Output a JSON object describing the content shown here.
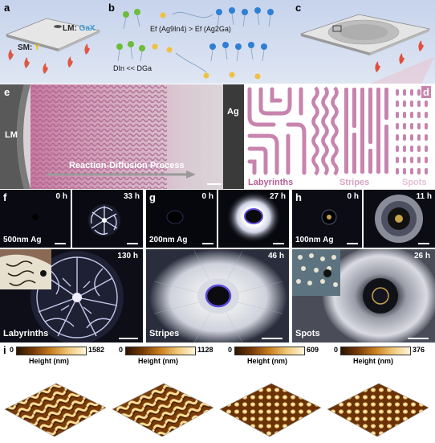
{
  "panels": {
    "a": {
      "label": "a",
      "lm_prefix": "LM: ",
      "lm_value": "GaX",
      "sm_prefix": "SM: ",
      "sm_value": "Y"
    },
    "b": {
      "label": "b",
      "eq1_left": "Ef (Ag9In4)",
      "eq1_op": ">",
      "eq1_right": "Ef (Ag2Ga)",
      "eq2": "DIn << DGa"
    },
    "c": {
      "label": "c"
    },
    "d": {
      "label": "d",
      "cat1": "Labyrinths",
      "cat2": "Stripes",
      "cat3": "Spots"
    },
    "e": {
      "label": "e",
      "left_text": "LM",
      "right_text": "Ag",
      "process_text": "Reaction-Diffusion Process"
    },
    "f": {
      "label": "f",
      "t0": "0 h",
      "t1": "33 h",
      "t2": "130 h",
      "film": "500nm Ag",
      "pattern": "Labyrinths"
    },
    "g": {
      "label": "g",
      "t0": "0 h",
      "t1": "27 h",
      "t2": "46 h",
      "film": "200nm Ag",
      "pattern": "Stripes"
    },
    "h": {
      "label": "h",
      "t0": "0 h",
      "t1": "11 h",
      "t2": "26 h",
      "film": "100nm Ag",
      "pattern": "Spots"
    },
    "i": {
      "label": "i"
    }
  },
  "colorbars": [
    {
      "min": "0",
      "max": "1582",
      "unit_label": "Height (nm)"
    },
    {
      "min": "0",
      "max": "1128",
      "unit_label": "Height (nm)"
    },
    {
      "min": "0",
      "max": "609",
      "unit_label": "Height (nm)"
    },
    {
      "min": "0",
      "max": "376",
      "unit_label": "Height (nm)"
    }
  ],
  "colors": {
    "background_top": "#ccd8ee",
    "pink_pattern": "#c784ae",
    "lm_blue": "#3a9ad9",
    "sm_yellow": "#e8c400",
    "flame": "#e0503a",
    "afm_dark": "#2b1400",
    "afm_light": "#fff2c0"
  }
}
